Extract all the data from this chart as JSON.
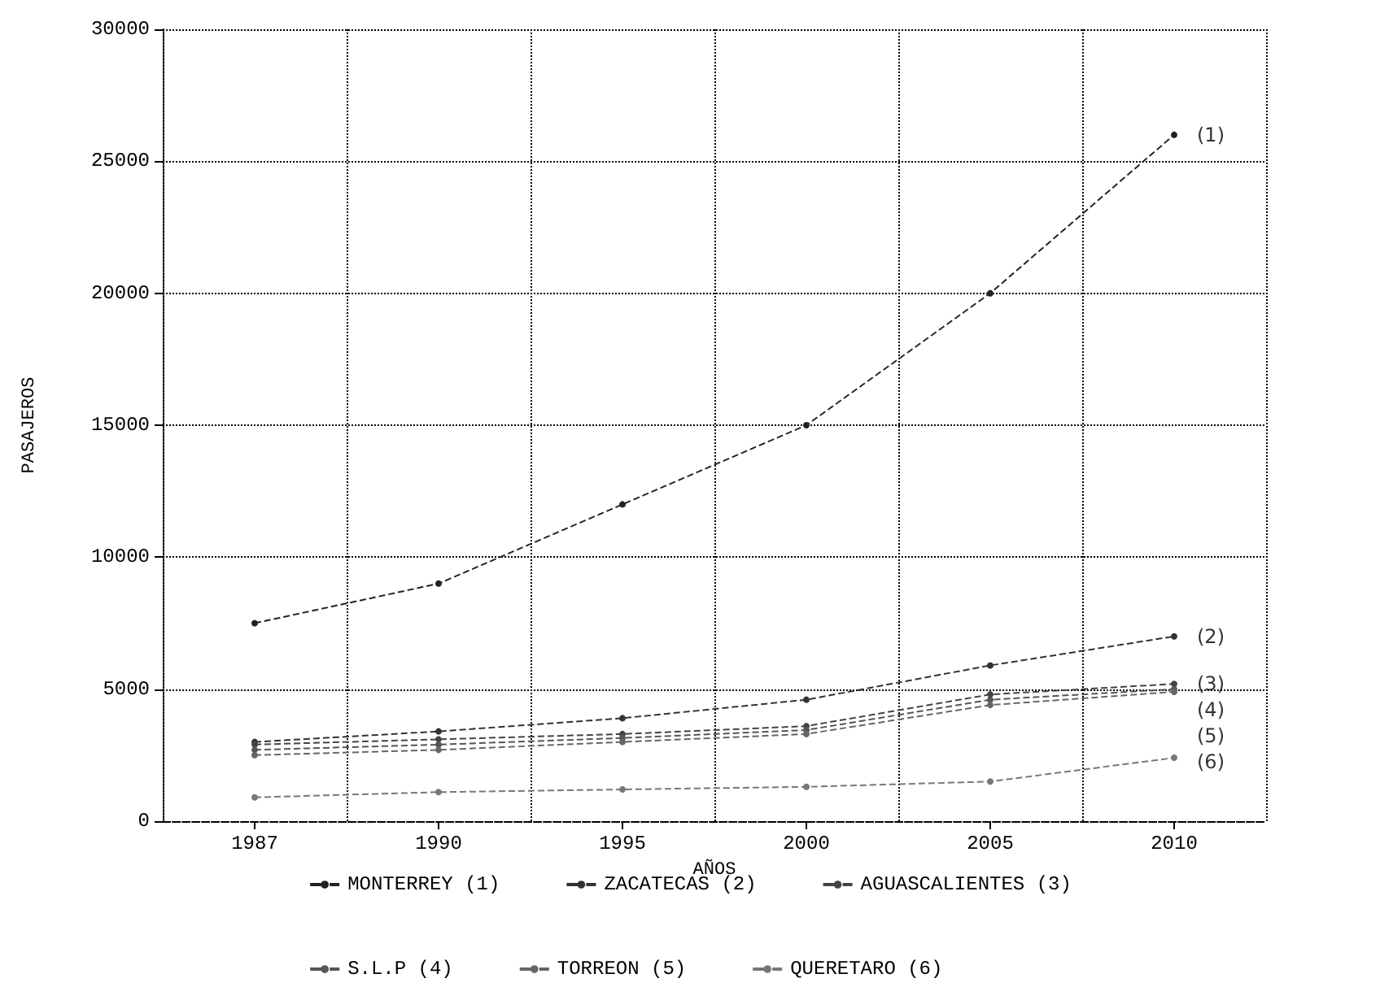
{
  "chart_data": {
    "type": "line",
    "xlabel": "AÑOS",
    "ylabel": "PASAJEROS",
    "categories": [
      "1987",
      "1990",
      "1995",
      "2000",
      "2005",
      "2010"
    ],
    "series": [
      {
        "name": "MONTERREY (1)",
        "color": "#222222",
        "values": [
          7500,
          9000,
          12000,
          15000,
          20000,
          26000
        ]
      },
      {
        "name": "ZACATECAS (2)",
        "color": "#333333",
        "values": [
          3000,
          3400,
          3900,
          4600,
          5900,
          7000
        ]
      },
      {
        "name": "AGUASCALIENTES (3)",
        "color": "#444444",
        "values": [
          2900,
          3100,
          3300,
          3600,
          4800,
          5200
        ]
      },
      {
        "name": "S.L.P (4)",
        "color": "#555555",
        "values": [
          2700,
          2900,
          3150,
          3450,
          4600,
          5000
        ]
      },
      {
        "name": "TORREON (5)",
        "color": "#666666",
        "values": [
          2500,
          2700,
          3000,
          3300,
          4400,
          4900
        ]
      },
      {
        "name": "QUERETARO (6)",
        "color": "#777777",
        "values": [
          900,
          1100,
          1200,
          1300,
          1500,
          2400
        ]
      }
    ],
    "annotations": [
      {
        "text": "(1)",
        "x": "2010",
        "y": 26000
      },
      {
        "text": "(2)",
        "x": "2010",
        "y": 7000
      },
      {
        "text": "(3)",
        "x": "2010",
        "y": 5200
      },
      {
        "text": "(4)",
        "x": "2010",
        "y": 5000
      },
      {
        "text": "(5)",
        "x": "2010",
        "y": 4900
      },
      {
        "text": "(6)",
        "x": "2010",
        "y": 2400
      }
    ],
    "ylim": [
      0,
      30000
    ],
    "yticks": [
      0,
      5000,
      10000,
      15000,
      20000,
      25000,
      30000
    ],
    "grid": true,
    "legend": "bottom",
    "marker": "circle",
    "line_style": "dashed"
  }
}
